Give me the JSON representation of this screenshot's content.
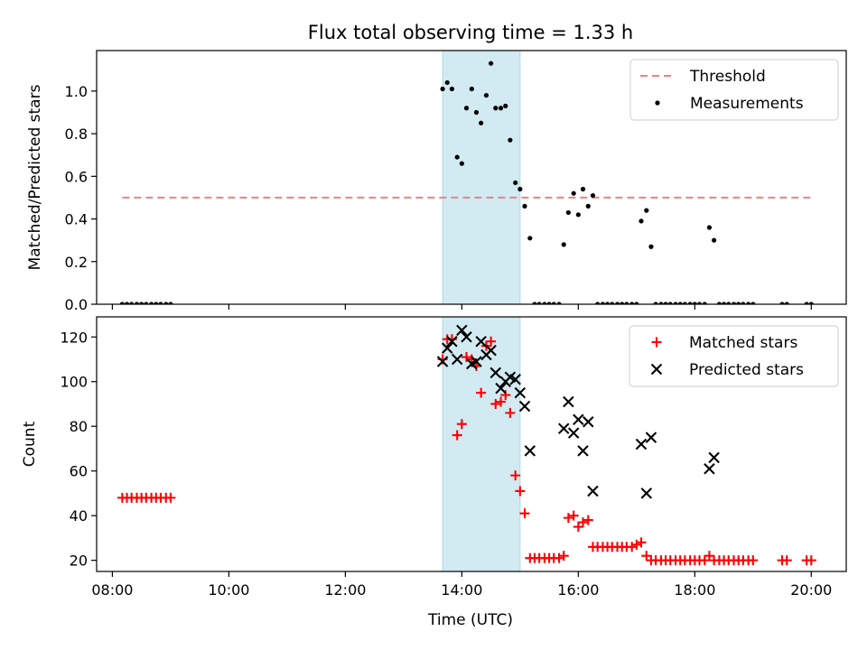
{
  "title": "Flux total observing time = 1.33 h",
  "colors": {
    "threshold": "#f08080",
    "matched": "#ff0000",
    "predicted": "#000000",
    "measurement": "#000000",
    "highlight": "#add8e6"
  },
  "chart_data": [
    {
      "type": "scatter",
      "ylabel": "Matched/Predicted stars",
      "xlim": [
        7.73,
        20.6
      ],
      "ylim": [
        0,
        1.19
      ],
      "yticks": [
        0.0,
        0.2,
        0.4,
        0.6,
        0.8,
        1.0
      ],
      "ytick_labels": [
        "0.0",
        "0.2",
        "0.4",
        "0.6",
        "0.8",
        "1.0"
      ],
      "highlight_span": [
        13.67,
        15.0
      ],
      "legend_position": "upper right",
      "threshold": {
        "name": "Threshold",
        "value": 0.5,
        "x_range": [
          8.17,
          20.0
        ],
        "style": "dashed"
      },
      "series": [
        {
          "name": "Measurements",
          "marker": "dot",
          "points": [
            [
              8.17,
              0
            ],
            [
              8.25,
              0
            ],
            [
              8.33,
              0
            ],
            [
              8.42,
              0
            ],
            [
              8.5,
              0
            ],
            [
              8.58,
              0
            ],
            [
              8.67,
              0
            ],
            [
              8.75,
              0
            ],
            [
              8.83,
              0
            ],
            [
              8.92,
              0
            ],
            [
              9.0,
              0
            ],
            [
              13.67,
              1.01
            ],
            [
              13.75,
              1.04
            ],
            [
              13.83,
              1.01
            ],
            [
              13.92,
              0.69
            ],
            [
              14.0,
              0.66
            ],
            [
              14.08,
              0.92
            ],
            [
              14.17,
              1.01
            ],
            [
              14.25,
              0.9
            ],
            [
              14.33,
              0.85
            ],
            [
              14.42,
              0.98
            ],
            [
              14.5,
              1.13
            ],
            [
              14.58,
              0.92
            ],
            [
              14.67,
              0.92
            ],
            [
              14.75,
              0.93
            ],
            [
              14.83,
              0.77
            ],
            [
              14.92,
              0.57
            ],
            [
              15.0,
              0.54
            ],
            [
              15.08,
              0.46
            ],
            [
              15.17,
              0.31
            ],
            [
              15.25,
              0
            ],
            [
              15.33,
              0
            ],
            [
              15.42,
              0
            ],
            [
              15.5,
              0
            ],
            [
              15.58,
              0
            ],
            [
              15.67,
              0
            ],
            [
              15.75,
              0.28
            ],
            [
              15.83,
              0.43
            ],
            [
              15.92,
              0.52
            ],
            [
              16.0,
              0.42
            ],
            [
              16.08,
              0.54
            ],
            [
              16.17,
              0.46
            ],
            [
              16.25,
              0.51
            ],
            [
              16.33,
              0
            ],
            [
              16.42,
              0
            ],
            [
              16.5,
              0
            ],
            [
              16.58,
              0
            ],
            [
              16.67,
              0
            ],
            [
              16.75,
              0
            ],
            [
              16.83,
              0
            ],
            [
              16.92,
              0
            ],
            [
              17.0,
              0
            ],
            [
              17.08,
              0.39
            ],
            [
              17.17,
              0.44
            ],
            [
              17.25,
              0.27
            ],
            [
              17.33,
              0
            ],
            [
              17.42,
              0
            ],
            [
              17.5,
              0
            ],
            [
              17.58,
              0
            ],
            [
              17.67,
              0
            ],
            [
              17.75,
              0
            ],
            [
              17.83,
              0
            ],
            [
              17.92,
              0
            ],
            [
              18.0,
              0
            ],
            [
              18.08,
              0
            ],
            [
              18.17,
              0
            ],
            [
              18.25,
              0.36
            ],
            [
              18.33,
              0.3
            ],
            [
              18.42,
              0
            ],
            [
              18.5,
              0
            ],
            [
              18.58,
              0
            ],
            [
              18.67,
              0
            ],
            [
              18.75,
              0
            ],
            [
              18.83,
              0
            ],
            [
              18.92,
              0
            ],
            [
              19.0,
              0
            ],
            [
              19.5,
              0
            ],
            [
              19.58,
              0
            ],
            [
              19.92,
              0
            ],
            [
              20.0,
              0
            ]
          ]
        }
      ]
    },
    {
      "type": "scatter",
      "xlabel": "Time (UTC)",
      "ylabel": "Count",
      "xlim": [
        7.73,
        20.6
      ],
      "ylim": [
        15,
        129
      ],
      "yticks": [
        20,
        40,
        60,
        80,
        100,
        120
      ],
      "ytick_labels": [
        "20",
        "40",
        "60",
        "80",
        "100",
        "120"
      ],
      "xticks": [
        8,
        10,
        12,
        14,
        16,
        18,
        20
      ],
      "xtick_labels": [
        "08:00",
        "10:00",
        "12:00",
        "14:00",
        "16:00",
        "18:00",
        "20:00"
      ],
      "highlight_span": [
        13.67,
        15.0
      ],
      "legend_position": "upper right",
      "series": [
        {
          "name": "Matched stars",
          "marker": "plus",
          "points": [
            [
              8.17,
              48
            ],
            [
              8.25,
              48
            ],
            [
              8.33,
              48
            ],
            [
              8.42,
              48
            ],
            [
              8.5,
              48
            ],
            [
              8.58,
              48
            ],
            [
              8.67,
              48
            ],
            [
              8.75,
              48
            ],
            [
              8.83,
              48
            ],
            [
              8.92,
              48
            ],
            [
              9.0,
              48
            ],
            [
              13.67,
              110
            ],
            [
              13.75,
              119
            ],
            [
              13.83,
              119
            ],
            [
              13.92,
              76
            ],
            [
              14.0,
              81
            ],
            [
              14.08,
              111
            ],
            [
              14.17,
              110
            ],
            [
              14.25,
              107
            ],
            [
              14.33,
              95
            ],
            [
              14.42,
              116
            ],
            [
              14.5,
              118
            ],
            [
              14.58,
              90
            ],
            [
              14.67,
              91
            ],
            [
              14.75,
              94
            ],
            [
              14.83,
              86
            ],
            [
              14.92,
              58
            ],
            [
              15.0,
              51
            ],
            [
              15.08,
              41
            ],
            [
              15.17,
              21
            ],
            [
              15.25,
              21
            ],
            [
              15.33,
              21
            ],
            [
              15.42,
              21
            ],
            [
              15.5,
              21
            ],
            [
              15.58,
              21
            ],
            [
              15.67,
              21
            ],
            [
              15.75,
              22
            ],
            [
              15.83,
              39
            ],
            [
              15.92,
              40
            ],
            [
              16.0,
              35
            ],
            [
              16.08,
              37
            ],
            [
              16.17,
              38
            ],
            [
              16.25,
              26
            ],
            [
              16.33,
              26
            ],
            [
              16.42,
              26
            ],
            [
              16.5,
              26
            ],
            [
              16.58,
              26
            ],
            [
              16.67,
              26
            ],
            [
              16.75,
              26
            ],
            [
              16.83,
              26
            ],
            [
              16.92,
              26
            ],
            [
              17.0,
              27
            ],
            [
              17.08,
              28
            ],
            [
              17.17,
              22
            ],
            [
              17.25,
              20
            ],
            [
              17.33,
              20
            ],
            [
              17.42,
              20
            ],
            [
              17.5,
              20
            ],
            [
              17.58,
              20
            ],
            [
              17.67,
              20
            ],
            [
              17.75,
              20
            ],
            [
              17.83,
              20
            ],
            [
              17.92,
              20
            ],
            [
              18.0,
              20
            ],
            [
              18.08,
              20
            ],
            [
              18.17,
              20
            ],
            [
              18.25,
              22
            ],
            [
              18.33,
              20
            ],
            [
              18.42,
              20
            ],
            [
              18.5,
              20
            ],
            [
              18.58,
              20
            ],
            [
              18.67,
              20
            ],
            [
              18.75,
              20
            ],
            [
              18.83,
              20
            ],
            [
              18.92,
              20
            ],
            [
              19.0,
              20
            ],
            [
              19.5,
              20
            ],
            [
              19.58,
              20
            ],
            [
              19.92,
              20
            ],
            [
              20.0,
              20
            ]
          ]
        },
        {
          "name": "Predicted stars",
          "marker": "x",
          "points": [
            [
              13.67,
              109
            ],
            [
              13.75,
              115
            ],
            [
              13.83,
              118
            ],
            [
              13.92,
              110
            ],
            [
              14.0,
              123
            ],
            [
              14.08,
              120
            ],
            [
              14.17,
              108
            ],
            [
              14.25,
              109
            ],
            [
              14.33,
              118
            ],
            [
              14.42,
              112
            ],
            [
              14.5,
              114
            ],
            [
              14.58,
              104
            ],
            [
              14.67,
              97
            ],
            [
              14.75,
              100
            ],
            [
              14.83,
              102
            ],
            [
              14.92,
              101
            ],
            [
              15.0,
              95
            ],
            [
              15.08,
              89
            ],
            [
              15.17,
              69
            ],
            [
              15.75,
              79
            ],
            [
              15.83,
              91
            ],
            [
              15.92,
              77
            ],
            [
              16.0,
              83
            ],
            [
              16.08,
              69
            ],
            [
              16.17,
              82
            ],
            [
              16.25,
              51
            ],
            [
              17.08,
              72
            ],
            [
              17.17,
              50
            ],
            [
              17.25,
              75
            ],
            [
              18.25,
              61
            ],
            [
              18.33,
              66
            ]
          ]
        }
      ]
    }
  ]
}
